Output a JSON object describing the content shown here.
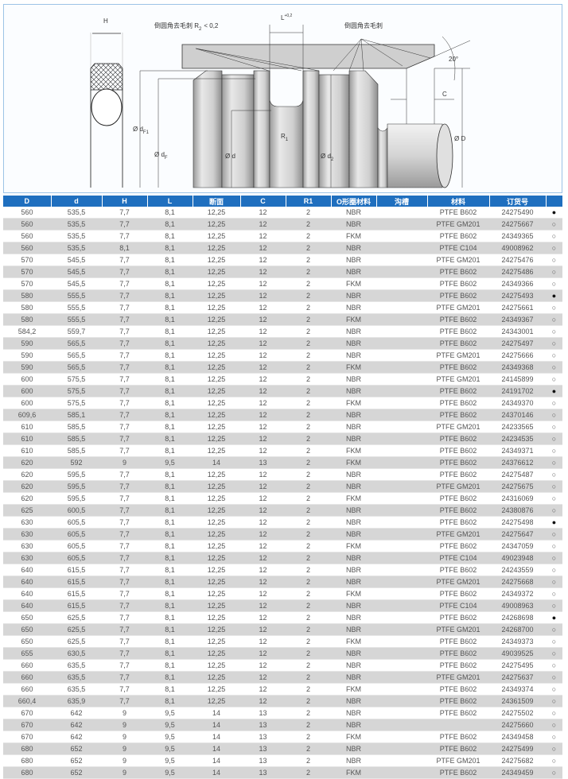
{
  "diagram": {
    "label_H": "H",
    "label_chamfer_r2": "倒圆角去毛刺 R",
    "label_r2_sub": "2",
    "label_r2_value": "< 0,2",
    "label_L": "L",
    "label_L_tol": "+0,2",
    "label_chamfer": "倒圆角去毛刺",
    "label_angle": "20°",
    "label_C": "C",
    "label_dF1": "Ø d",
    "label_dF1_sub": "F1",
    "label_dF": "Ø d",
    "label_dF_sub": "F",
    "label_d": "Ø d",
    "label_d2": "Ø d",
    "label_d2_sub": "2",
    "label_R1": "R",
    "label_R1_sub": "1",
    "label_D": "Ø D"
  },
  "table": {
    "headers": [
      "D",
      "d",
      "H",
      "L",
      "断面",
      "C",
      "R1",
      "O形圈材料",
      "沟槽",
      "材料",
      "订货号",
      ""
    ],
    "rows": [
      [
        "560",
        "535,5",
        "7,7",
        "8,1",
        "12,25",
        "12",
        "2",
        "NBR",
        "",
        "PTFE B602",
        "24275490",
        true
      ],
      [
        "560",
        "535,5",
        "7,7",
        "8,1",
        "12,25",
        "12",
        "2",
        "NBR",
        "",
        "PTFE GM201",
        "24275667",
        false
      ],
      [
        "560",
        "535,5",
        "7,7",
        "8,1",
        "12,25",
        "12",
        "2",
        "FKM",
        "",
        "PTFE B602",
        "24349365",
        false
      ],
      [
        "560",
        "535,5",
        "8,1",
        "8,1",
        "12,25",
        "12",
        "2",
        "NBR",
        "",
        "PTFE C104",
        "49008962",
        false
      ],
      [
        "570",
        "545,5",
        "7,7",
        "8,1",
        "12,25",
        "12",
        "2",
        "NBR",
        "",
        "PTFE GM201",
        "24275476",
        false
      ],
      [
        "570",
        "545,5",
        "7,7",
        "8,1",
        "12,25",
        "12",
        "2",
        "NBR",
        "",
        "PTFE B602",
        "24275486",
        false
      ],
      [
        "570",
        "545,5",
        "7,7",
        "8,1",
        "12,25",
        "12",
        "2",
        "FKM",
        "",
        "PTFE B602",
        "24349366",
        false
      ],
      [
        "580",
        "555,5",
        "7,7",
        "8,1",
        "12,25",
        "12",
        "2",
        "NBR",
        "",
        "PTFE B602",
        "24275493",
        true
      ],
      [
        "580",
        "555,5",
        "7,7",
        "8,1",
        "12,25",
        "12",
        "2",
        "NBR",
        "",
        "PTFE GM201",
        "24275661",
        false
      ],
      [
        "580",
        "555,5",
        "7,7",
        "8,1",
        "12,25",
        "12",
        "2",
        "FKM",
        "",
        "PTFE B602",
        "24349367",
        false
      ],
      [
        "584,2",
        "559,7",
        "7,7",
        "8,1",
        "12,25",
        "12",
        "2",
        "NBR",
        "",
        "PTFE B602",
        "24343001",
        false
      ],
      [
        "590",
        "565,5",
        "7,7",
        "8,1",
        "12,25",
        "12",
        "2",
        "NBR",
        "",
        "PTFE B602",
        "24275497",
        false
      ],
      [
        "590",
        "565,5",
        "7,7",
        "8,1",
        "12,25",
        "12",
        "2",
        "NBR",
        "",
        "PTFE GM201",
        "24275666",
        false
      ],
      [
        "590",
        "565,5",
        "7,7",
        "8,1",
        "12,25",
        "12",
        "2",
        "FKM",
        "",
        "PTFE B602",
        "24349368",
        false
      ],
      [
        "600",
        "575,5",
        "7,7",
        "8,1",
        "12,25",
        "12",
        "2",
        "NBR",
        "",
        "PTFE GM201",
        "24145899",
        false
      ],
      [
        "600",
        "575,5",
        "7,7",
        "8,1",
        "12,25",
        "12",
        "2",
        "NBR",
        "",
        "PTFE B602",
        "24191702",
        true
      ],
      [
        "600",
        "575,5",
        "7,7",
        "8,1",
        "12,25",
        "12",
        "2",
        "FKM",
        "",
        "PTFE B602",
        "24349370",
        false
      ],
      [
        "609,6",
        "585,1",
        "7,7",
        "8,1",
        "12,25",
        "12",
        "2",
        "NBR",
        "",
        "PTFE B602",
        "24370146",
        false
      ],
      [
        "610",
        "585,5",
        "7,7",
        "8,1",
        "12,25",
        "12",
        "2",
        "NBR",
        "",
        "PTFE GM201",
        "24233565",
        false
      ],
      [
        "610",
        "585,5",
        "7,7",
        "8,1",
        "12,25",
        "12",
        "2",
        "NBR",
        "",
        "PTFE B602",
        "24234535",
        false
      ],
      [
        "610",
        "585,5",
        "7,7",
        "8,1",
        "12,25",
        "12",
        "2",
        "FKM",
        "",
        "PTFE B602",
        "24349371",
        false
      ],
      [
        "620",
        "592",
        "9",
        "9,5",
        "14",
        "13",
        "2",
        "FKM",
        "",
        "PTFE B602",
        "24376612",
        false
      ],
      [
        "620",
        "595,5",
        "7,7",
        "8,1",
        "12,25",
        "12",
        "2",
        "NBR",
        "",
        "PTFE B602",
        "24275487",
        false
      ],
      [
        "620",
        "595,5",
        "7,7",
        "8,1",
        "12,25",
        "12",
        "2",
        "NBR",
        "",
        "PTFE GM201",
        "24275675",
        false
      ],
      [
        "620",
        "595,5",
        "7,7",
        "8,1",
        "12,25",
        "12",
        "2",
        "FKM",
        "",
        "PTFE B602",
        "24316069",
        false
      ],
      [
        "625",
        "600,5",
        "7,7",
        "8,1",
        "12,25",
        "12",
        "2",
        "NBR",
        "",
        "PTFE B602",
        "24380876",
        false
      ],
      [
        "630",
        "605,5",
        "7,7",
        "8,1",
        "12,25",
        "12",
        "2",
        "NBR",
        "",
        "PTFE B602",
        "24275498",
        true
      ],
      [
        "630",
        "605,5",
        "7,7",
        "8,1",
        "12,25",
        "12",
        "2",
        "NBR",
        "",
        "PTFE GM201",
        "24275647",
        false
      ],
      [
        "630",
        "605,5",
        "7,7",
        "8,1",
        "12,25",
        "12",
        "2",
        "FKM",
        "",
        "PTFE B602",
        "24347059",
        false
      ],
      [
        "630",
        "605,5",
        "7,7",
        "8,1",
        "12,25",
        "12",
        "2",
        "NBR",
        "",
        "PTFE C104",
        "49023948",
        false
      ],
      [
        "640",
        "615,5",
        "7,7",
        "8,1",
        "12,25",
        "12",
        "2",
        "NBR",
        "",
        "PTFE B602",
        "24243559",
        false
      ],
      [
        "640",
        "615,5",
        "7,7",
        "8,1",
        "12,25",
        "12",
        "2",
        "NBR",
        "",
        "PTFE GM201",
        "24275668",
        false
      ],
      [
        "640",
        "615,5",
        "7,7",
        "8,1",
        "12,25",
        "12",
        "2",
        "FKM",
        "",
        "PTFE B602",
        "24349372",
        false
      ],
      [
        "640",
        "615,5",
        "7,7",
        "8,1",
        "12,25",
        "12",
        "2",
        "NBR",
        "",
        "PTFE C104",
        "49008963",
        false
      ],
      [
        "650",
        "625,5",
        "7,7",
        "8,1",
        "12,25",
        "12",
        "2",
        "NBR",
        "",
        "PTFE B602",
        "24268698",
        true
      ],
      [
        "650",
        "625,5",
        "7,7",
        "8,1",
        "12,25",
        "12",
        "2",
        "NBR",
        "",
        "PTFE GM201",
        "24268700",
        false
      ],
      [
        "650",
        "625,5",
        "7,7",
        "8,1",
        "12,25",
        "12",
        "2",
        "FKM",
        "",
        "PTFE B602",
        "24349373",
        false
      ],
      [
        "655",
        "630,5",
        "7,7",
        "8,1",
        "12,25",
        "12",
        "2",
        "NBR",
        "",
        "PTFE B602",
        "49039525",
        false
      ],
      [
        "660",
        "635,5",
        "7,7",
        "8,1",
        "12,25",
        "12",
        "2",
        "NBR",
        "",
        "PTFE B602",
        "24275495",
        false
      ],
      [
        "660",
        "635,5",
        "7,7",
        "8,1",
        "12,25",
        "12",
        "2",
        "NBR",
        "",
        "PTFE GM201",
        "24275637",
        false
      ],
      [
        "660",
        "635,5",
        "7,7",
        "8,1",
        "12,25",
        "12",
        "2",
        "FKM",
        "",
        "PTFE B602",
        "24349374",
        false
      ],
      [
        "660,4",
        "635,9",
        "7,7",
        "8,1",
        "12,25",
        "12",
        "2",
        "NBR",
        "",
        "PTFE B602",
        "24361509",
        false
      ],
      [
        "670",
        "642",
        "9",
        "9,5",
        "14",
        "13",
        "2",
        "NBR",
        "",
        "PTFE B602",
        "24275502",
        false
      ],
      [
        "670",
        "642",
        "9",
        "9,5",
        "14",
        "13",
        "2",
        "NBR",
        "",
        "",
        "24275660",
        false
      ],
      [
        "670",
        "642",
        "9",
        "9,5",
        "14",
        "13",
        "2",
        "FKM",
        "",
        "PTFE B602",
        "24349458",
        false
      ],
      [
        "680",
        "652",
        "9",
        "9,5",
        "14",
        "13",
        "2",
        "NBR",
        "",
        "PTFE B602",
        "24275499",
        false
      ],
      [
        "680",
        "652",
        "9",
        "9,5",
        "14",
        "13",
        "2",
        "NBR",
        "",
        "PTFE GM201",
        "24275682",
        false
      ],
      [
        "680",
        "652",
        "9",
        "9,5",
        "14",
        "13",
        "2",
        "FKM",
        "",
        "PTFE B602",
        "24349459",
        false
      ]
    ],
    "stock_symbols": {
      "filled": "●",
      "empty": "○"
    }
  },
  "colors": {
    "header_bg": "#1f6fbf",
    "stripe": "#d6d6d6",
    "diagram_border": "#9cc3e6"
  }
}
